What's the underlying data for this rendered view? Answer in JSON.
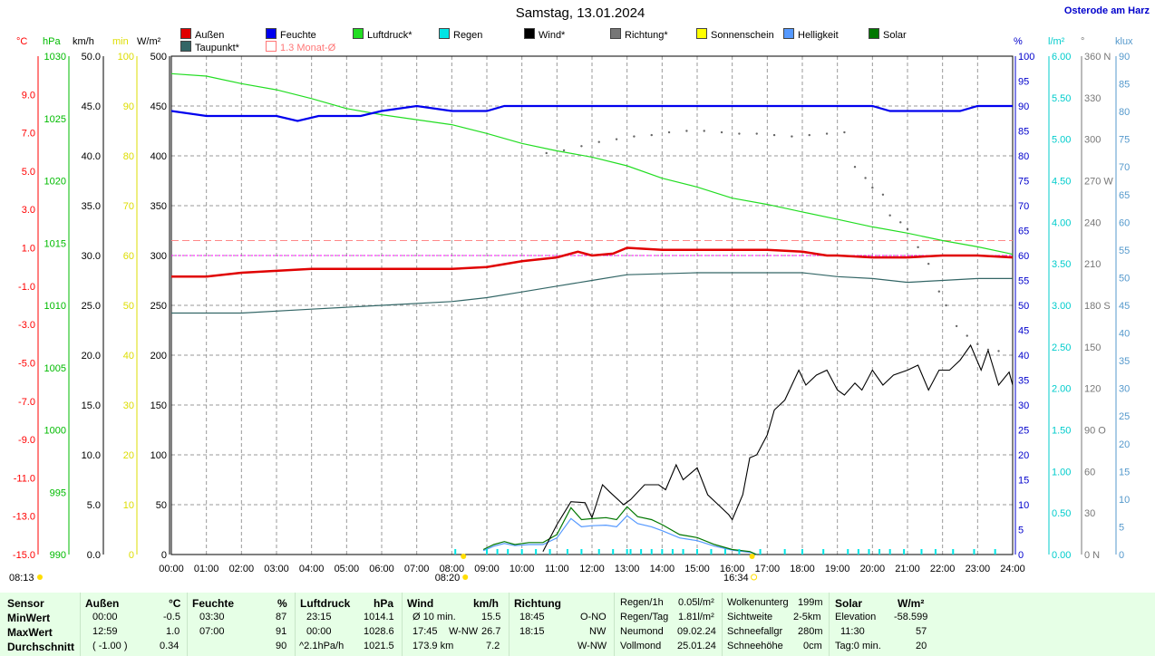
{
  "title": "Samstag, 13.01.2024",
  "location": "Osterode am Harz",
  "legend": [
    {
      "label": "Außen",
      "color": "#e00000"
    },
    {
      "label": "Feuchte",
      "color": "#0000ee"
    },
    {
      "label": "Luftdruck*",
      "color": "#22dd22"
    },
    {
      "label": "Regen",
      "color": "#00e5e5"
    },
    {
      "label": "Wind*",
      "color": "#000000"
    },
    {
      "label": "Richtung*",
      "color": "#777777"
    },
    {
      "label": "Sonnenschein",
      "color": "#ffff00"
    },
    {
      "label": "Helligkeit",
      "color": "#5599ff"
    },
    {
      "label": "Solar",
      "color": "#007700"
    },
    {
      "label": "Taupunkt*",
      "color": "#336666"
    },
    {
      "label": "1.3 Monat-Ø",
      "color": "#ffffff"
    }
  ],
  "units": {
    "temp": "°C",
    "hpa": "hPa",
    "kmh": "km/h",
    "min": "min",
    "wm2": "W/m²",
    "pct": "%",
    "rain": "l/m²",
    "deg": "°",
    "klux": "klux"
  },
  "sun_marks": {
    "sunrise": "08:13",
    "sunrise_chart": "08:20",
    "sunset": "16:34"
  },
  "chart_data": {
    "type": "line",
    "x_range": [
      "00:00",
      "24:00"
    ],
    "x_ticks": [
      "00:00",
      "01:00",
      "02:00",
      "03:00",
      "04:00",
      "05:00",
      "06:00",
      "07:00",
      "08:00",
      "09:00",
      "10:00",
      "11:00",
      "12:00",
      "13:00",
      "14:00",
      "15:00",
      "16:00",
      "17:00",
      "18:00",
      "19:00",
      "20:00",
      "21:00",
      "22:00",
      "23:00",
      "24:00"
    ],
    "axes": {
      "temp": {
        "range": [
          -15,
          11
        ],
        "ticks": [
          "9.0",
          "7.0",
          "5.0",
          "3.0",
          "1.0",
          "-1.0",
          "-3.0",
          "-5.0",
          "-7.0",
          "-9.0",
          "-11.0",
          "-13.0",
          "-15.0"
        ],
        "color": "#ff0000"
      },
      "hpa": {
        "range": [
          990,
          1030
        ],
        "ticks": [
          "1030",
          "1025",
          "1020",
          "1015",
          "1010",
          "1005",
          "1000",
          "995",
          "990"
        ],
        "color": "#00bb00"
      },
      "kmh": {
        "range": [
          0,
          50
        ],
        "ticks": [
          "50.0",
          "45.0",
          "40.0",
          "35.0",
          "30.0",
          "25.0",
          "20.0",
          "15.0",
          "10.0",
          "5.0",
          "0.0"
        ],
        "color": "#000000"
      },
      "min": {
        "range": [
          0,
          100
        ],
        "ticks": [
          "100",
          "90",
          "80",
          "70",
          "60",
          "50",
          "40",
          "30",
          "20",
          "10",
          "0"
        ],
        "color": "#dddd00"
      },
      "wm2": {
        "range": [
          0,
          500
        ],
        "ticks": [
          "500",
          "450",
          "400",
          "350",
          "300",
          "250",
          "200",
          "150",
          "100",
          "50",
          "0"
        ],
        "color": "#000000"
      },
      "pct": {
        "range": [
          0,
          100
        ],
        "ticks": [
          "100",
          "95",
          "90",
          "85",
          "80",
          "75",
          "70",
          "65",
          "60",
          "55",
          "50",
          "45",
          "40",
          "35",
          "30",
          "25",
          "20",
          "15",
          "10",
          "5",
          "0"
        ],
        "color": "#0000cc"
      },
      "rain": {
        "range": [
          0,
          6
        ],
        "ticks": [
          "6.00",
          "5.50",
          "5.00",
          "4.50",
          "4.00",
          "3.50",
          "3.00",
          "2.50",
          "2.00",
          "1.50",
          "1.00",
          "0.50",
          "0.00"
        ],
        "color": "#00cccc"
      },
      "deg": {
        "range": [
          0,
          360
        ],
        "ticks": [
          "360 N",
          "330",
          "300",
          "270 W",
          "240",
          "210",
          "180 S",
          "150",
          "120",
          "90 O",
          "60",
          "30",
          "0 N"
        ],
        "color": "#777777"
      },
      "klux": {
        "range": [
          0,
          90
        ],
        "ticks": [
          "90",
          "85",
          "80",
          "75",
          "70",
          "65",
          "60",
          "55",
          "50",
          "45",
          "40",
          "35",
          "30",
          "25",
          "20",
          "15",
          "10",
          "5",
          "0"
        ],
        "color": "#5599cc"
      }
    },
    "series": {
      "feuchte_pct": [
        [
          0,
          89
        ],
        [
          1,
          88
        ],
        [
          2,
          88
        ],
        [
          3,
          88
        ],
        [
          3.6,
          87
        ],
        [
          4.2,
          88
        ],
        [
          5.4,
          88
        ],
        [
          6,
          89
        ],
        [
          7,
          90
        ],
        [
          8,
          89
        ],
        [
          9,
          89
        ],
        [
          9.5,
          90
        ],
        [
          10,
          90
        ],
        [
          12,
          90
        ],
        [
          15,
          90
        ],
        [
          18,
          90
        ],
        [
          20,
          90
        ],
        [
          20.5,
          89
        ],
        [
          21,
          89
        ],
        [
          22,
          89
        ],
        [
          22.5,
          89
        ],
        [
          23,
          90
        ],
        [
          24,
          90
        ]
      ],
      "aussen_c": [
        [
          0,
          -0.5
        ],
        [
          1,
          -0.5
        ],
        [
          2,
          -0.3
        ],
        [
          3,
          -0.2
        ],
        [
          4,
          -0.1
        ],
        [
          5,
          -0.1
        ],
        [
          6,
          -0.1
        ],
        [
          7,
          -0.1
        ],
        [
          8,
          -0.1
        ],
        [
          9,
          0.0
        ],
        [
          10,
          0.3
        ],
        [
          11,
          0.5
        ],
        [
          11.6,
          0.8
        ],
        [
          12,
          0.6
        ],
        [
          12.6,
          0.7
        ],
        [
          13,
          1.0
        ],
        [
          14,
          0.9
        ],
        [
          15,
          0.9
        ],
        [
          16,
          0.9
        ],
        [
          17,
          0.9
        ],
        [
          18,
          0.8
        ],
        [
          18.7,
          0.6
        ],
        [
          19,
          0.6
        ],
        [
          20,
          0.5
        ],
        [
          21,
          0.5
        ],
        [
          22,
          0.6
        ],
        [
          23,
          0.6
        ],
        [
          24,
          0.5
        ]
      ],
      "taupunkt_c": [
        [
          0,
          -2.4
        ],
        [
          2,
          -2.4
        ],
        [
          4,
          -2.2
        ],
        [
          6,
          -2.0
        ],
        [
          8,
          -1.8
        ],
        [
          9,
          -1.6
        ],
        [
          10,
          -1.3
        ],
        [
          11,
          -1.0
        ],
        [
          12,
          -0.7
        ],
        [
          13,
          -0.4
        ],
        [
          15,
          -0.3
        ],
        [
          17,
          -0.3
        ],
        [
          18,
          -0.3
        ],
        [
          19,
          -0.5
        ],
        [
          20,
          -0.6
        ],
        [
          21,
          -0.8
        ],
        [
          22,
          -0.7
        ],
        [
          23,
          -0.6
        ],
        [
          24,
          -0.6
        ]
      ],
      "luftdruck_hpa": [
        [
          0,
          1028.6
        ],
        [
          1,
          1028.4
        ],
        [
          2,
          1027.8
        ],
        [
          3,
          1027.3
        ],
        [
          4,
          1026.6
        ],
        [
          5,
          1025.8
        ],
        [
          6,
          1025.3
        ],
        [
          7,
          1024.9
        ],
        [
          8,
          1024.5
        ],
        [
          9,
          1023.8
        ],
        [
          10,
          1023.0
        ],
        [
          11,
          1022.4
        ],
        [
          12,
          1021.9
        ],
        [
          13,
          1021.2
        ],
        [
          14,
          1020.2
        ],
        [
          15,
          1019.5
        ],
        [
          16,
          1018.6
        ],
        [
          17,
          1018.1
        ],
        [
          18,
          1017.5
        ],
        [
          19,
          1016.9
        ],
        [
          20,
          1016.3
        ],
        [
          21,
          1015.8
        ],
        [
          22,
          1015.2
        ],
        [
          23,
          1014.7
        ],
        [
          24,
          1014.1
        ]
      ],
      "wind_kmh": [
        [
          10.6,
          0.3
        ],
        [
          11,
          3.0
        ],
        [
          11.4,
          5.3
        ],
        [
          11.8,
          5.2
        ],
        [
          12,
          3.7
        ],
        [
          12.3,
          7.0
        ],
        [
          12.5,
          6.3
        ],
        [
          12.9,
          5.0
        ],
        [
          13.1,
          5.5
        ],
        [
          13.5,
          7.0
        ],
        [
          13.9,
          7.0
        ],
        [
          14.1,
          6.5
        ],
        [
          14.4,
          9.0
        ],
        [
          14.6,
          7.5
        ],
        [
          15,
          8.7
        ],
        [
          15.3,
          6.0
        ],
        [
          15.6,
          5.0
        ],
        [
          15.9,
          4.0
        ],
        [
          16,
          3.5
        ],
        [
          16.3,
          6.0
        ],
        [
          16.5,
          9.7
        ],
        [
          16.7,
          10.0
        ],
        [
          17,
          12.0
        ],
        [
          17.2,
          14.5
        ],
        [
          17.5,
          15.5
        ],
        [
          17.9,
          18.5
        ],
        [
          18.1,
          17.0
        ],
        [
          18.4,
          18.0
        ],
        [
          18.7,
          18.5
        ],
        [
          19,
          16.5
        ],
        [
          19.2,
          16.0
        ],
        [
          19.5,
          17.2
        ],
        [
          19.7,
          16.5
        ],
        [
          20,
          18.5
        ],
        [
          20.3,
          17.0
        ],
        [
          20.6,
          18.0
        ],
        [
          21,
          18.5
        ],
        [
          21.3,
          19.0
        ],
        [
          21.6,
          16.5
        ],
        [
          21.9,
          18.5
        ],
        [
          22.2,
          18.5
        ],
        [
          22.5,
          19.5
        ],
        [
          22.8,
          21.0
        ],
        [
          23.1,
          18.5
        ],
        [
          23.3,
          20.5
        ],
        [
          23.6,
          17.0
        ],
        [
          23.9,
          18.3
        ],
        [
          24,
          17.0
        ]
      ],
      "solar_wm2": [
        [
          8.9,
          5
        ],
        [
          9.2,
          10
        ],
        [
          9.5,
          13
        ],
        [
          9.8,
          10
        ],
        [
          10.2,
          12
        ],
        [
          10.6,
          12
        ],
        [
          11,
          20
        ],
        [
          11.4,
          47
        ],
        [
          11.7,
          35
        ],
        [
          12,
          36
        ],
        [
          12.4,
          37
        ],
        [
          12.7,
          35
        ],
        [
          13,
          48
        ],
        [
          13.3,
          38
        ],
        [
          13.7,
          35
        ],
        [
          14,
          30
        ],
        [
          14.5,
          20
        ],
        [
          15,
          17
        ],
        [
          15.5,
          10
        ],
        [
          16,
          5
        ],
        [
          16.5,
          3
        ],
        [
          16.7,
          0
        ]
      ],
      "helligkeit_klux": [
        [
          8.9,
          0.7
        ],
        [
          9.2,
          1.5
        ],
        [
          9.5,
          2.0
        ],
        [
          9.8,
          1.6
        ],
        [
          10.2,
          1.8
        ],
        [
          10.6,
          1.8
        ],
        [
          11,
          3.0
        ],
        [
          11.4,
          6.5
        ],
        [
          11.7,
          5.0
        ],
        [
          12,
          5.2
        ],
        [
          12.4,
          5.3
        ],
        [
          12.7,
          5.0
        ],
        [
          13,
          7.0
        ],
        [
          13.3,
          5.6
        ],
        [
          13.7,
          5.0
        ],
        [
          14,
          4.3
        ],
        [
          14.5,
          3.0
        ],
        [
          15,
          2.5
        ],
        [
          15.5,
          1.5
        ],
        [
          16,
          0.8
        ],
        [
          16.5,
          0.4
        ],
        [
          16.7,
          0
        ]
      ],
      "richtung_deg": [
        [
          10.7,
          290
        ],
        [
          11.2,
          292
        ],
        [
          11.7,
          295
        ],
        [
          12.2,
          298
        ],
        [
          12.7,
          300
        ],
        [
          13.2,
          302
        ],
        [
          13.7,
          303
        ],
        [
          14.2,
          305
        ],
        [
          14.7,
          306
        ],
        [
          15.2,
          306
        ],
        [
          15.7,
          305
        ],
        [
          16.2,
          304
        ],
        [
          16.7,
          304
        ],
        [
          17.2,
          303
        ],
        [
          17.7,
          302
        ],
        [
          18.2,
          303
        ],
        [
          18.7,
          304
        ],
        [
          19.2,
          305
        ],
        [
          19.5,
          280
        ],
        [
          19.8,
          272
        ],
        [
          20,
          265
        ],
        [
          20.3,
          260
        ],
        [
          20.5,
          245
        ],
        [
          20.8,
          240
        ],
        [
          21,
          235
        ],
        [
          21.3,
          222
        ],
        [
          21.6,
          210
        ],
        [
          21.9,
          190
        ],
        [
          22.1,
          180
        ],
        [
          22.4,
          165
        ],
        [
          22.7,
          158
        ],
        [
          23,
          152
        ],
        [
          23.3,
          148
        ],
        [
          23.6,
          147
        ]
      ],
      "rain_marks_h": [
        8.1,
        9,
        9.3,
        9.6,
        10,
        10.4,
        10.8,
        11.3,
        11.7,
        12.2,
        12.6,
        13,
        13.1,
        13.4,
        13.7,
        14,
        14.3,
        14.6,
        15,
        15.4,
        15.8,
        16.2,
        16.8,
        17.5,
        18,
        18.6,
        19.3,
        19.6,
        19.9,
        20.2,
        20.5,
        20.9,
        21.4,
        21.8,
        22.3,
        22.9,
        23.5
      ],
      "rain_day_l": [
        [
          0,
          0
        ],
        [
          24,
          0
        ]
      ]
    },
    "reference_lines": [
      {
        "name": "1.3 Monat-Ø",
        "value_temp": 1.0,
        "color": "#ff8888",
        "style": "dashed"
      },
      {
        "name": "60 %",
        "value_pct": 60,
        "color": "#ff00ff",
        "style": "dotted"
      }
    ],
    "grid": true
  },
  "stats": {
    "headers": {
      "sensor": "Sensor",
      "aussen": "Außen",
      "aussen_u": "°C",
      "feuchte": "Feuchte",
      "feuchte_u": "%",
      "luftdruck": "Luftdruck",
      "luftdruck_u": "hPa",
      "wind": "Wind",
      "wind_u": "km/h",
      "richtung": "Richtung"
    },
    "rows": [
      {
        "label": "MinWert",
        "a_t": "00:00",
        "a_v": "-0.5",
        "f_t": "03:30",
        "f_v": "87",
        "l_t": "23:15",
        "l_v": "1014.1",
        "w_t": "Ø 10 min.",
        "w_v": "15.5",
        "r_t": "18:45",
        "r_v": "O-NO"
      },
      {
        "label": "MaxWert",
        "a_t": "12:59",
        "a_v": "1.0",
        "f_t": "07:00",
        "f_v": "91",
        "l_t": "00:00",
        "l_v": "1028.6",
        "w_t": "17:45",
        "w_d": "W-NW",
        "w_v": "26.7",
        "r_t": "18:15",
        "r_v": "NW"
      },
      {
        "label": "Durchschnitt",
        "a_t": "( -1.00 )",
        "a_v": "0.34",
        "f_t": "",
        "f_v": "90",
        "l_t": "^2.1hPa/h",
        "l_v": "1021.5",
        "w_t": "173.9 km",
        "w_v": "7.2",
        "r_t": "",
        "r_v": "W-NW"
      }
    ],
    "regen": [
      {
        "k": "Regen/1h",
        "v": "0.05l/m²"
      },
      {
        "k": "Regen/Tag",
        "v": "1.81l/m²"
      },
      {
        "k": "Neumond",
        "v": "09.02.24"
      },
      {
        "k": "Vollmond",
        "v": "25.01.24"
      }
    ],
    "wolken": [
      {
        "k": "Wolkenunterg",
        "v": "199m"
      },
      {
        "k": "Sichtweite",
        "v": "2-5km"
      },
      {
        "k": "Schneefallgr",
        "v": "280m"
      },
      {
        "k": "Schneehöhe",
        "v": "0cm"
      }
    ],
    "solar": {
      "header": "Solar",
      "unit": "W/m²",
      "rows": [
        {
          "k": "Elevation",
          "v": "-58.599"
        },
        {
          "k": "11:30",
          "v": "57"
        },
        {
          "k": "Tag:0 min.",
          "v": "20"
        }
      ]
    }
  }
}
